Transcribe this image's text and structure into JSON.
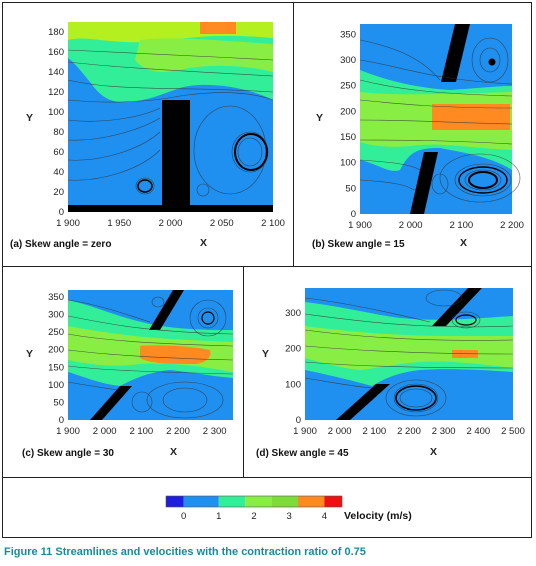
{
  "colors": {
    "frame": "#222222",
    "velocity_0_0_5": "#1e1edc",
    "velocity_0_5_1": "#1f8ff0",
    "velocity_1_1_5": "#33ee99",
    "velocity_1_5_2": "#88ee44",
    "velocity_2_2_5": "#b4f020",
    "velocity_2_5_3": "#7edc3a",
    "velocity_3_3_5": "#ff8a22",
    "velocity_3_5_4": "#ee1111",
    "wall": "#000000",
    "streamline": "#333333",
    "caption": "#1a8a9a"
  },
  "chart_data": [
    {
      "type": "heatmap",
      "caption": "(a) Skew angle = zero",
      "xlabel": "X",
      "ylabel": "Y",
      "xlim": [
        1900,
        2100
      ],
      "ylim": [
        0,
        190
      ],
      "xticks": [
        "1 900",
        "1 950",
        "2 000",
        "2 050",
        "2 100"
      ],
      "yticks": [
        "0",
        "20",
        "40",
        "60",
        "80",
        "100",
        "120",
        "140",
        "160",
        "180"
      ],
      "skew_angle_deg": 0
    },
    {
      "type": "heatmap",
      "caption": "(b) Skew angle = 15",
      "xlabel": "X",
      "ylabel": "Y",
      "xlim": [
        1900,
        2200
      ],
      "ylim": [
        0,
        370
      ],
      "xticks": [
        "1 900",
        "2 000",
        "2 100",
        "2 200"
      ],
      "yticks": [
        "0",
        "50",
        "100",
        "150",
        "200",
        "250",
        "300",
        "350"
      ],
      "skew_angle_deg": 15
    },
    {
      "type": "heatmap",
      "caption": "(c) Skew angle = 30",
      "xlabel": "X",
      "ylabel": "Y",
      "xlim": [
        1900,
        2350
      ],
      "ylim": [
        0,
        370
      ],
      "xticks": [
        "1 900",
        "2 000",
        "2 100",
        "2 200",
        "2 300"
      ],
      "yticks": [
        "0",
        "50",
        "100",
        "150",
        "200",
        "250",
        "300",
        "350"
      ],
      "skew_angle_deg": 30
    },
    {
      "type": "heatmap",
      "caption": "(d) Skew angle = 45",
      "xlabel": "X",
      "ylabel": "Y",
      "xlim": [
        1900,
        2500
      ],
      "ylim": [
        0,
        370
      ],
      "xticks": [
        "1 900",
        "2 000",
        "2 100",
        "2 200",
        "2 300",
        "2 400",
        "2 500"
      ],
      "yticks": [
        "0",
        "100",
        "200",
        "300"
      ],
      "skew_angle_deg": 45
    }
  ],
  "legend": {
    "title": "Velocity (m/s)",
    "tick_labels": [
      "0",
      "1",
      "2",
      "3",
      "4"
    ],
    "tick_values": [
      0,
      1,
      2,
      3,
      4
    ],
    "bins": [
      [
        -0.5,
        0
      ],
      [
        0,
        1
      ],
      [
        1,
        1.75
      ],
      [
        1.75,
        2.5
      ],
      [
        2.5,
        3.25
      ],
      [
        3.25,
        4
      ],
      [
        4,
        4.5
      ]
    ],
    "bin_colors": [
      "#1e1edc",
      "#1f8ff0",
      "#33ee99",
      "#88ee44",
      "#7edc3a",
      "#ff8a22",
      "#ee1111"
    ]
  },
  "figure_caption": "Figure 11 Streamlines and velocities with the contraction ratio of 0.75"
}
